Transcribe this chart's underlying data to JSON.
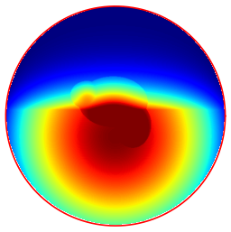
{
  "fig_width": 2.56,
  "fig_height": 2.57,
  "dpi": 100,
  "background_color": "#ffffff",
  "colormap": "jet",
  "grid_n": 500,
  "circle_r": 0.95
}
